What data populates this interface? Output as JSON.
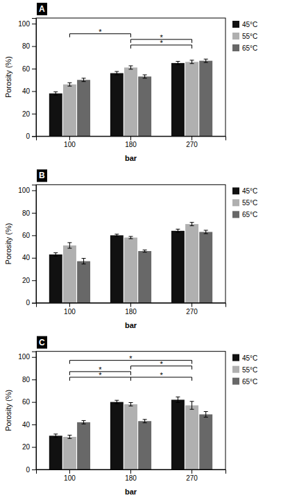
{
  "chart_data": [
    {
      "type": "bar",
      "title": "A",
      "xlabel": "bar",
      "ylabel": "Porosity (%)",
      "categories": [
        "100",
        "180",
        "270"
      ],
      "series": [
        {
          "name": "45°C",
          "color": "#111111",
          "values": [
            38,
            56,
            65
          ],
          "errors": [
            1.5,
            1.5,
            1.5
          ]
        },
        {
          "name": "55°C",
          "color": "#b0b0b0",
          "values": [
            46,
            61,
            66
          ],
          "errors": [
            1.5,
            1.5,
            1.5
          ]
        },
        {
          "name": "65°C",
          "color": "#686868",
          "values": [
            50,
            53,
            67
          ],
          "errors": [
            1.5,
            1.5,
            1.5
          ]
        }
      ],
      "annotations": [
        {
          "text": "*",
          "from": "100",
          "to": "180",
          "y": 91
        },
        {
          "text": "*",
          "from": "180",
          "to": "270",
          "y": 86
        },
        {
          "text": "*",
          "from": "180",
          "to": "270",
          "y": 81
        }
      ],
      "ylim": [
        0,
        105
      ],
      "yticks": [
        0,
        20,
        40,
        60,
        80,
        100
      ],
      "grid": false,
      "legend": "right"
    },
    {
      "type": "bar",
      "title": "B",
      "xlabel": "bar",
      "ylabel": "Porosity (%)",
      "categories": [
        "100",
        "180",
        "270"
      ],
      "series": [
        {
          "name": "45°C",
          "color": "#111111",
          "values": [
            43,
            60,
            64
          ],
          "errors": [
            1.5,
            1.0,
            1.5
          ]
        },
        {
          "name": "55°C",
          "color": "#b0b0b0",
          "values": [
            51,
            58,
            70
          ],
          "errors": [
            2.5,
            1.0,
            1.5
          ]
        },
        {
          "name": "65°C",
          "color": "#686868",
          "values": [
            37,
            46,
            63
          ],
          "errors": [
            2.5,
            1.0,
            1.5
          ]
        }
      ],
      "annotations": [],
      "ylim": [
        0,
        105
      ],
      "yticks": [
        0,
        20,
        40,
        60,
        80,
        100
      ],
      "grid": false,
      "legend": "right"
    },
    {
      "type": "bar",
      "title": "C",
      "xlabel": "bar",
      "ylabel": "Porosity (%)",
      "categories": [
        "100",
        "180",
        "270"
      ],
      "series": [
        {
          "name": "45°C",
          "color": "#111111",
          "values": [
            30,
            60,
            62
          ],
          "errors": [
            1.5,
            1.5,
            2.5
          ]
        },
        {
          "name": "55°C",
          "color": "#b0b0b0",
          "values": [
            29,
            58,
            57
          ],
          "errors": [
            1.5,
            1.5,
            3.5
          ]
        },
        {
          "name": "65°C",
          "color": "#686868",
          "values": [
            42,
            43,
            49
          ],
          "errors": [
            1.5,
            1.5,
            2.5
          ]
        }
      ],
      "annotations": [
        {
          "text": "*",
          "from": "100",
          "to": "270",
          "y": 97
        },
        {
          "text": "*",
          "from": "180",
          "to": "270",
          "y": 92
        },
        {
          "text": "*",
          "from": "100",
          "to": "180",
          "y": 87
        },
        {
          "text": "*",
          "from": "100",
          "to": "180",
          "y": 82
        },
        {
          "text": "*",
          "from": "180",
          "to": "270",
          "y": 82
        }
      ],
      "ylim": [
        0,
        105
      ],
      "yticks": [
        0,
        20,
        40,
        60,
        80,
        100
      ],
      "grid": false,
      "legend": "right"
    }
  ]
}
